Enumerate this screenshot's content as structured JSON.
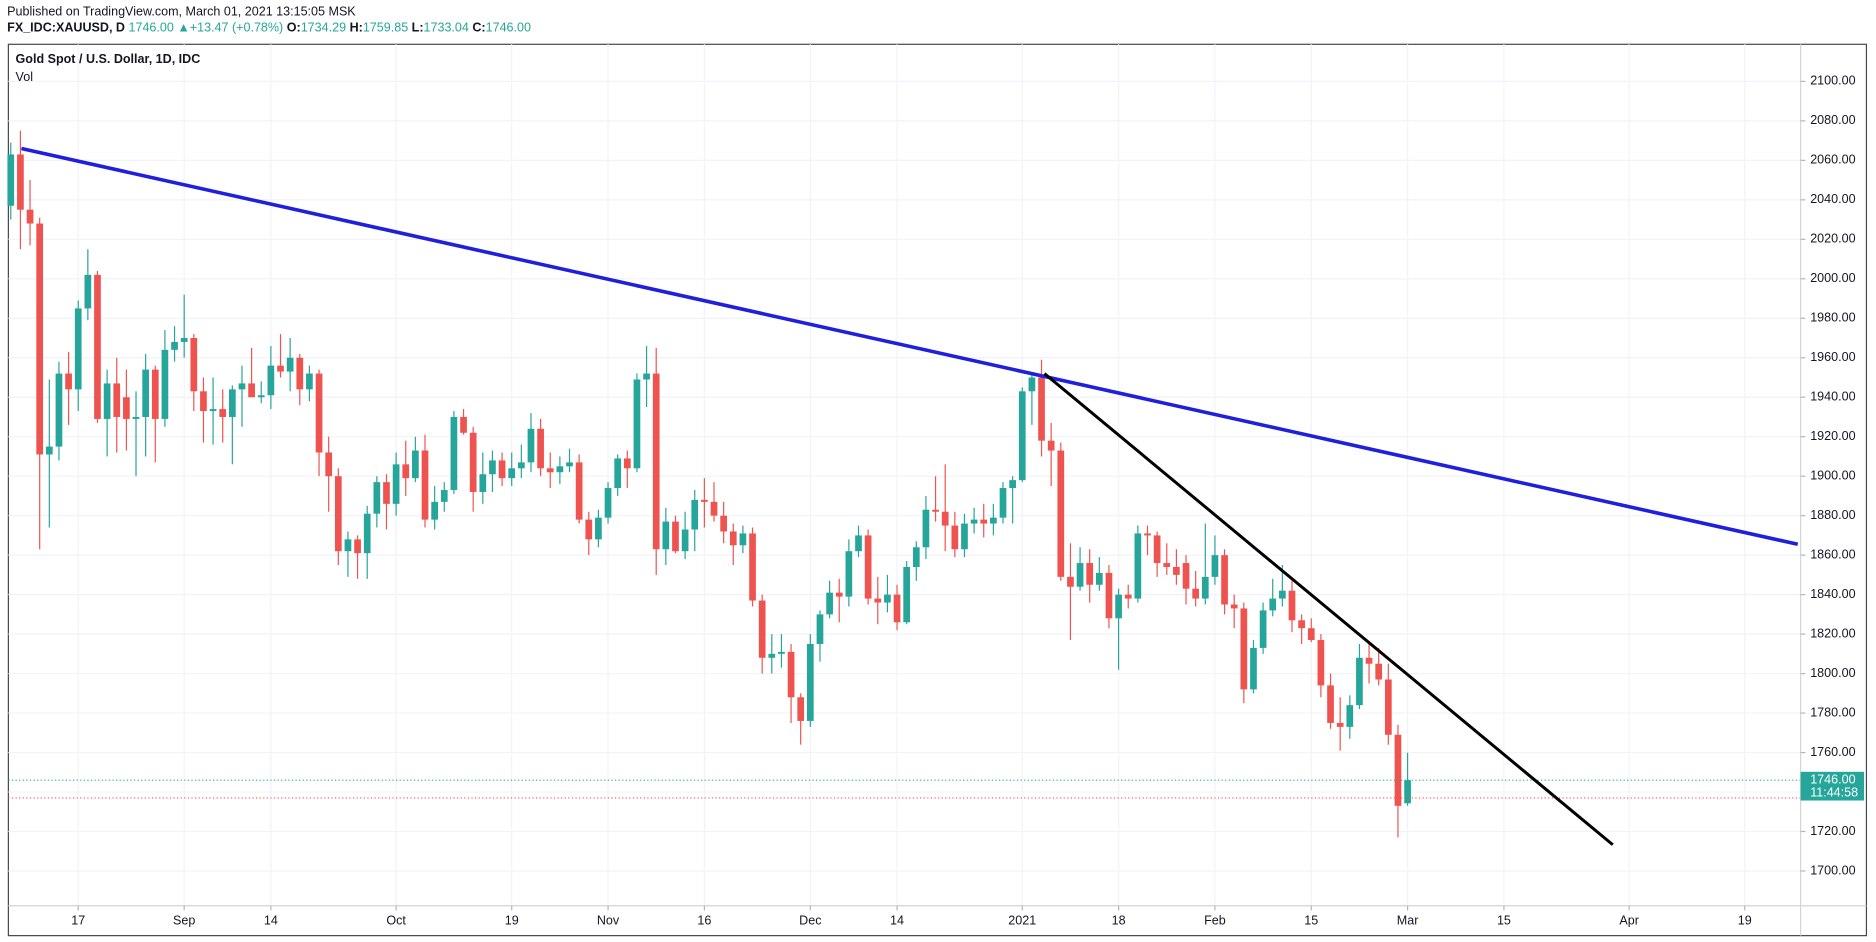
{
  "header": {
    "published": "Published on TradingView.com, March 01, 2021 13:15:05 MSK",
    "symbol": "FX_IDC:XAUUSD, D",
    "last": "1746.00",
    "arrow": "▲",
    "change": "+13.47 (+0.78%)",
    "open_label": "O:",
    "open": "1734.29",
    "high_label": "H:",
    "high": "1759.85",
    "low_label": "L:",
    "low": "1733.04",
    "close_label": "C:",
    "close": "1746.00"
  },
  "chart_data": {
    "type": "candlestick",
    "title": "Gold Spot / U.S. Dollar, 1D, IDC",
    "subtitle": "Vol",
    "up_color": "#26a69a",
    "down_color": "#ef5350",
    "grid": true,
    "xlim": [
      -0.25,
      185.8
    ],
    "ylim": [
      1682.4,
      2118.8
    ],
    "xticks": [
      {
        "value": 7,
        "label": "17"
      },
      {
        "value": 18,
        "label": "Sep"
      },
      {
        "value": 27,
        "label": "14"
      },
      {
        "value": 40,
        "label": "Oct"
      },
      {
        "value": 52,
        "label": "19"
      },
      {
        "value": 62,
        "label": "Nov"
      },
      {
        "value": 72,
        "label": "16"
      },
      {
        "value": 83,
        "label": "Dec"
      },
      {
        "value": 92,
        "label": "14"
      },
      {
        "value": 105,
        "label": "2021"
      },
      {
        "value": 115,
        "label": "18"
      },
      {
        "value": 125,
        "label": "Feb"
      },
      {
        "value": 135,
        "label": "15"
      },
      {
        "value": 145,
        "label": "Mar"
      },
      {
        "value": 155,
        "label": "15"
      },
      {
        "value": 168,
        "label": "Apr"
      },
      {
        "value": 180,
        "label": "19"
      }
    ],
    "yticks": [
      {
        "value": 1700,
        "label": "1700.00"
      },
      {
        "value": 1720,
        "label": "1720.00"
      },
      {
        "value": 1740,
        "label": "1740.00"
      },
      {
        "value": 1760,
        "label": "1760.00"
      },
      {
        "value": 1780,
        "label": "1780.00"
      },
      {
        "value": 1800,
        "label": "1800.00"
      },
      {
        "value": 1820,
        "label": "1820.00"
      },
      {
        "value": 1840,
        "label": "1840.00"
      },
      {
        "value": 1860,
        "label": "1860.00"
      },
      {
        "value": 1880,
        "label": "1880.00"
      },
      {
        "value": 1900,
        "label": "1900.00"
      },
      {
        "value": 1920,
        "label": "1920.00"
      },
      {
        "value": 1940,
        "label": "1940.00"
      },
      {
        "value": 1960,
        "label": "1960.00"
      },
      {
        "value": 1980,
        "label": "1980.00"
      },
      {
        "value": 2000,
        "label": "2000.00"
      },
      {
        "value": 2020,
        "label": "2020.00"
      },
      {
        "value": 2040,
        "label": "2040.00"
      },
      {
        "value": 2060,
        "label": "2060.00"
      },
      {
        "value": 2080,
        "label": "2080.00"
      },
      {
        "value": 2100,
        "label": "2100.00"
      }
    ],
    "series": [
      {
        "name": "XAUUSD",
        "values": [
          [
            2037,
            2069,
            2030,
            2063
          ],
          [
            2063,
            2075,
            2015,
            2035
          ],
          [
            2035,
            2050,
            2017,
            2028
          ],
          [
            2028,
            2031,
            1863,
            1911
          ],
          [
            1911,
            1949,
            1874,
            1915
          ],
          [
            1915,
            1958,
            1908,
            1952
          ],
          [
            1952,
            1963,
            1926,
            1944
          ],
          [
            1944,
            1989,
            1933,
            1985
          ],
          [
            1985,
            2015,
            1979,
            2002
          ],
          [
            2002,
            2004,
            1927,
            1929
          ],
          [
            1929,
            1954,
            1910,
            1947
          ],
          [
            1947,
            1960,
            1912,
            1930
          ],
          [
            1940,
            1954,
            1913,
            1929
          ],
          [
            1929,
            1943,
            1900,
            1930
          ],
          [
            1930,
            1962,
            1910,
            1954
          ],
          [
            1954,
            1956,
            1907,
            1929
          ],
          [
            1929,
            1974,
            1925,
            1964
          ],
          [
            1964,
            1976,
            1958,
            1968
          ],
          [
            1968,
            1992,
            1960,
            1970
          ],
          [
            1970,
            1972,
            1933,
            1943
          ],
          [
            1943,
            1950,
            1917,
            1933
          ],
          [
            1933,
            1950,
            1916,
            1934
          ],
          [
            1934,
            1944,
            1917,
            1930
          ],
          [
            1930,
            1946,
            1906,
            1944
          ],
          [
            1944,
            1956,
            1925,
            1947
          ],
          [
            1947,
            1965,
            1941,
            1940
          ],
          [
            1940,
            1948,
            1937,
            1941
          ],
          [
            1941,
            1966,
            1934,
            1956
          ],
          [
            1956,
            1972,
            1950,
            1953
          ],
          [
            1953,
            1970,
            1943,
            1960
          ],
          [
            1960,
            1962,
            1936,
            1944
          ],
          [
            1944,
            1956,
            1938,
            1952
          ],
          [
            1952,
            1954,
            1900,
            1912
          ],
          [
            1912,
            1920,
            1882,
            1900
          ],
          [
            1900,
            1904,
            1855,
            1862
          ],
          [
            1862,
            1872,
            1849,
            1868
          ],
          [
            1868,
            1870,
            1848,
            1861
          ],
          [
            1861,
            1885,
            1848,
            1881
          ],
          [
            1881,
            1900,
            1874,
            1897
          ],
          [
            1897,
            1901,
            1873,
            1886
          ],
          [
            1886,
            1912,
            1880,
            1906
          ],
          [
            1906,
            1918,
            1890,
            1899
          ],
          [
            1899,
            1920,
            1897,
            1913
          ],
          [
            1913,
            1921,
            1874,
            1878
          ],
          [
            1878,
            1895,
            1873,
            1887
          ],
          [
            1887,
            1897,
            1882,
            1893
          ],
          [
            1893,
            1933,
            1891,
            1930
          ],
          [
            1930,
            1934,
            1921,
            1922
          ],
          [
            1922,
            1925,
            1882,
            1892
          ],
          [
            1892,
            1912,
            1886,
            1901
          ],
          [
            1901,
            1913,
            1892,
            1908
          ],
          [
            1908,
            1912,
            1895,
            1899
          ],
          [
            1899,
            1912,
            1895,
            1904
          ],
          [
            1904,
            1916,
            1899,
            1907
          ],
          [
            1907,
            1932,
            1902,
            1924
          ],
          [
            1924,
            1929,
            1900,
            1904
          ],
          [
            1904,
            1912,
            1894,
            1902
          ],
          [
            1902,
            1910,
            1896,
            1905
          ],
          [
            1905,
            1914,
            1902,
            1907
          ],
          [
            1907,
            1911,
            1876,
            1878
          ],
          [
            1878,
            1882,
            1860,
            1868
          ],
          [
            1868,
            1883,
            1864,
            1879
          ],
          [
            1879,
            1897,
            1876,
            1894
          ],
          [
            1894,
            1911,
            1890,
            1909
          ],
          [
            1909,
            1913,
            1894,
            1904
          ],
          [
            1904,
            1952,
            1902,
            1949
          ],
          [
            1949,
            1966,
            1935,
            1952
          ],
          [
            1952,
            1965,
            1850,
            1863
          ],
          [
            1863,
            1884,
            1855,
            1877
          ],
          [
            1877,
            1880,
            1861,
            1862
          ],
          [
            1862,
            1882,
            1858,
            1873
          ],
          [
            1873,
            1893,
            1862,
            1888
          ],
          [
            1888,
            1899,
            1874,
            1887
          ],
          [
            1887,
            1897,
            1877,
            1880
          ],
          [
            1880,
            1887,
            1866,
            1872
          ],
          [
            1872,
            1876,
            1855,
            1865
          ],
          [
            1865,
            1875,
            1861,
            1871
          ],
          [
            1871,
            1874,
            1834,
            1837
          ],
          [
            1837,
            1840,
            1800,
            1808
          ],
          [
            1808,
            1820,
            1800,
            1810
          ],
          [
            1810,
            1820,
            1803,
            1811
          ],
          [
            1811,
            1815,
            1775,
            1788
          ],
          [
            1788,
            1790,
            1764,
            1776
          ],
          [
            1776,
            1820,
            1773,
            1815
          ],
          [
            1815,
            1832,
            1806,
            1830
          ],
          [
            1830,
            1847,
            1828,
            1841
          ],
          [
            1841,
            1848,
            1826,
            1839
          ],
          [
            1839,
            1868,
            1834,
            1862
          ],
          [
            1862,
            1875,
            1859,
            1870
          ],
          [
            1870,
            1873,
            1835,
            1838
          ],
          [
            1838,
            1849,
            1825,
            1836
          ],
          [
            1836,
            1850,
            1831,
            1840
          ],
          [
            1840,
            1845,
            1822,
            1826
          ],
          [
            1826,
            1857,
            1825,
            1854
          ],
          [
            1854,
            1867,
            1847,
            1864
          ],
          [
            1864,
            1890,
            1858,
            1883
          ],
          [
            1883,
            1900,
            1877,
            1882
          ],
          [
            1882,
            1906,
            1862,
            1875
          ],
          [
            1875,
            1882,
            1859,
            1863
          ],
          [
            1863,
            1881,
            1859,
            1876
          ],
          [
            1876,
            1884,
            1871,
            1878
          ],
          [
            1878,
            1886,
            1869,
            1876
          ],
          [
            1876,
            1886,
            1870,
            1879
          ],
          [
            1879,
            1897,
            1876,
            1894
          ],
          [
            1894,
            1900,
            1876,
            1898
          ],
          [
            1898,
            1945,
            1897,
            1943
          ],
          [
            1943,
            1952,
            1926,
            1950
          ],
          [
            1950,
            1959,
            1910,
            1918
          ],
          [
            1918,
            1927,
            1895,
            1913
          ],
          [
            1913,
            1917,
            1847,
            1849
          ],
          [
            1849,
            1866,
            1817,
            1844
          ],
          [
            1844,
            1864,
            1842,
            1856
          ],
          [
            1856,
            1863,
            1836,
            1845
          ],
          [
            1845,
            1859,
            1842,
            1851
          ],
          [
            1851,
            1855,
            1823,
            1828
          ],
          [
            1828,
            1843,
            1802,
            1840
          ],
          [
            1840,
            1845,
            1833,
            1838
          ],
          [
            1838,
            1875,
            1836,
            1871
          ],
          [
            1871,
            1875,
            1860,
            1870
          ],
          [
            1870,
            1872,
            1849,
            1856
          ],
          [
            1856,
            1866,
            1850,
            1854
          ],
          [
            1854,
            1863,
            1845,
            1850
          ],
          [
            1856,
            1860,
            1835,
            1843
          ],
          [
            1843,
            1852,
            1834,
            1838
          ],
          [
            1838,
            1876,
            1835,
            1849
          ],
          [
            1849,
            1870,
            1845,
            1860
          ],
          [
            1860,
            1863,
            1830,
            1835
          ],
          [
            1835,
            1840,
            1823,
            1833
          ],
          [
            1833,
            1836,
            1785,
            1792
          ],
          [
            1792,
            1817,
            1790,
            1813
          ],
          [
            1813,
            1836,
            1810,
            1832
          ],
          [
            1832,
            1848,
            1829,
            1838
          ],
          [
            1838,
            1855,
            1834,
            1842
          ],
          [
            1842,
            1847,
            1821,
            1827
          ],
          [
            1827,
            1830,
            1815,
            1823
          ],
          [
            1823,
            1828,
            1816,
            1817
          ],
          [
            1817,
            1820,
            1788,
            1794
          ],
          [
            1794,
            1800,
            1772,
            1775
          ],
          [
            1775,
            1788,
            1761,
            1773
          ],
          [
            1773,
            1789,
            1767,
            1784
          ],
          [
            1784,
            1815,
            1782,
            1808
          ],
          [
            1808,
            1816,
            1795,
            1805
          ],
          [
            1805,
            1813,
            1794,
            1797
          ],
          [
            1797,
            1805,
            1764,
            1769
          ],
          [
            1769,
            1774,
            1717,
            1733
          ],
          [
            1734.29,
            1759.85,
            1733.04,
            1746.0
          ]
        ]
      }
    ],
    "reference_lines": [
      {
        "value": 1746,
        "color": "#26a69a"
      },
      {
        "value": 1737,
        "color": "#ef5350"
      }
    ],
    "trendlines": [
      {
        "color": "#1f1fdc",
        "x": [
          1.1,
          185.5
        ],
        "y": [
          2066,
          1865.5
        ]
      },
      {
        "color": "#000000",
        "x": [
          107.3,
          166.3
        ],
        "y": [
          1952,
          1713.3
        ]
      }
    ],
    "price_label": {
      "value": 1746,
      "label": "1746.00",
      "countdown": "11:44:58"
    }
  }
}
